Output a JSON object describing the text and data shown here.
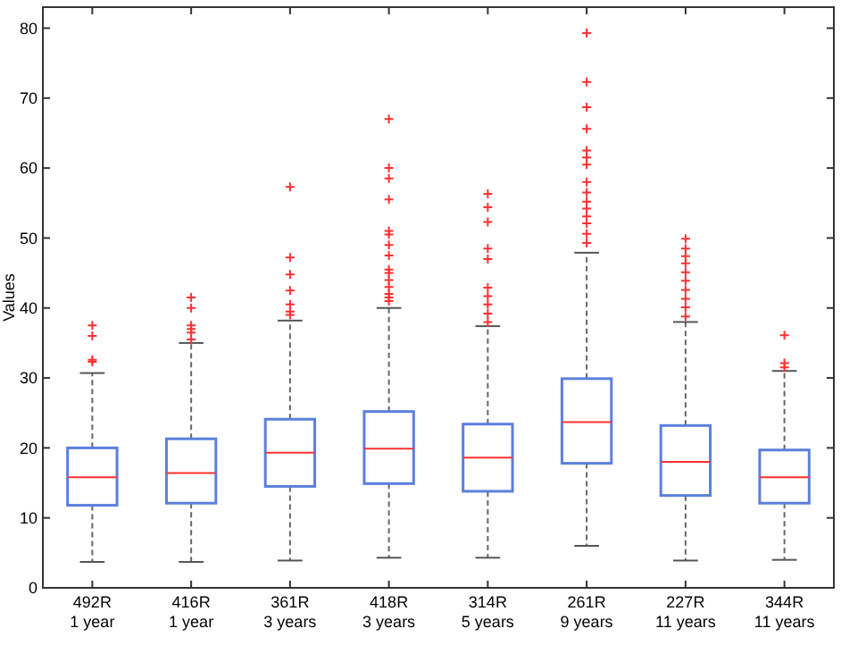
{
  "chart_data": {
    "type": "box",
    "ylabel": "Values",
    "categories": [
      "492R\n1 year",
      "416R\n1 year",
      "361R\n3 years",
      "418R\n3 years",
      "314R\n5 years",
      "261R\n9 years",
      "227R\n11 years",
      "344R\n11 years"
    ],
    "ylim": [
      0,
      83
    ],
    "yticks": [
      0,
      10,
      20,
      30,
      40,
      50,
      60,
      70,
      80
    ],
    "grid": false,
    "series": [
      {
        "color": "#5b7fde",
        "boxes": [
          {
            "low": 3.7,
            "q1": 11.8,
            "median": 15.8,
            "q3": 20,
            "high": 30.7,
            "outliers": [
              32.3,
              32.6,
              36,
              37.5
            ]
          },
          {
            "low": 3.7,
            "q1": 12.1,
            "median": 16.4,
            "q3": 21.3,
            "high": 35,
            "outliers": [
              35.5,
              36.5,
              37,
              37.5,
              40,
              41.5
            ]
          },
          {
            "low": 3.9,
            "q1": 14.5,
            "median": 19.3,
            "q3": 24.1,
            "high": 38.2,
            "outliers": [
              39,
              39.5,
              40.5,
              42.5,
              44.8,
              47.2,
              57.3
            ]
          },
          {
            "low": 4.3,
            "q1": 14.9,
            "median": 19.9,
            "q3": 25.2,
            "high": 40,
            "outliers": [
              41,
              41.5,
              42,
              43,
              44,
              45,
              45.5,
              47.5,
              49,
              50.5,
              51,
              55.5,
              58.5,
              60,
              67
            ]
          },
          {
            "low": 4.3,
            "q1": 13.8,
            "median": 18.6,
            "q3": 23.4,
            "high": 37.4,
            "outliers": [
              38,
              39.2,
              40.5,
              41.7,
              42.9,
              47,
              48.5,
              52.3,
              54.4,
              56.3
            ]
          },
          {
            "low": 6,
            "q1": 17.8,
            "median": 23.7,
            "q3": 29.9,
            "high": 47.9,
            "outliers": [
              49.3,
              50.6,
              52.1,
              53.1,
              54.2,
              55.2,
              56.5,
              58,
              60.5,
              61.5,
              62.5,
              65.6,
              68.7,
              72.3,
              79.3
            ]
          },
          {
            "low": 3.9,
            "q1": 13.2,
            "median": 18,
            "q3": 23.2,
            "high": 38,
            "outliers": [
              38.8,
              40.1,
              41.3,
              42.6,
              43.9,
              45.1,
              46.4,
              47.4,
              48.5,
              49.9
            ]
          },
          {
            "low": 4,
            "q1": 12.1,
            "median": 15.8,
            "q3": 19.7,
            "high": 31,
            "outliers": [
              31.5,
              32.1,
              36.1
            ]
          }
        ]
      }
    ]
  }
}
